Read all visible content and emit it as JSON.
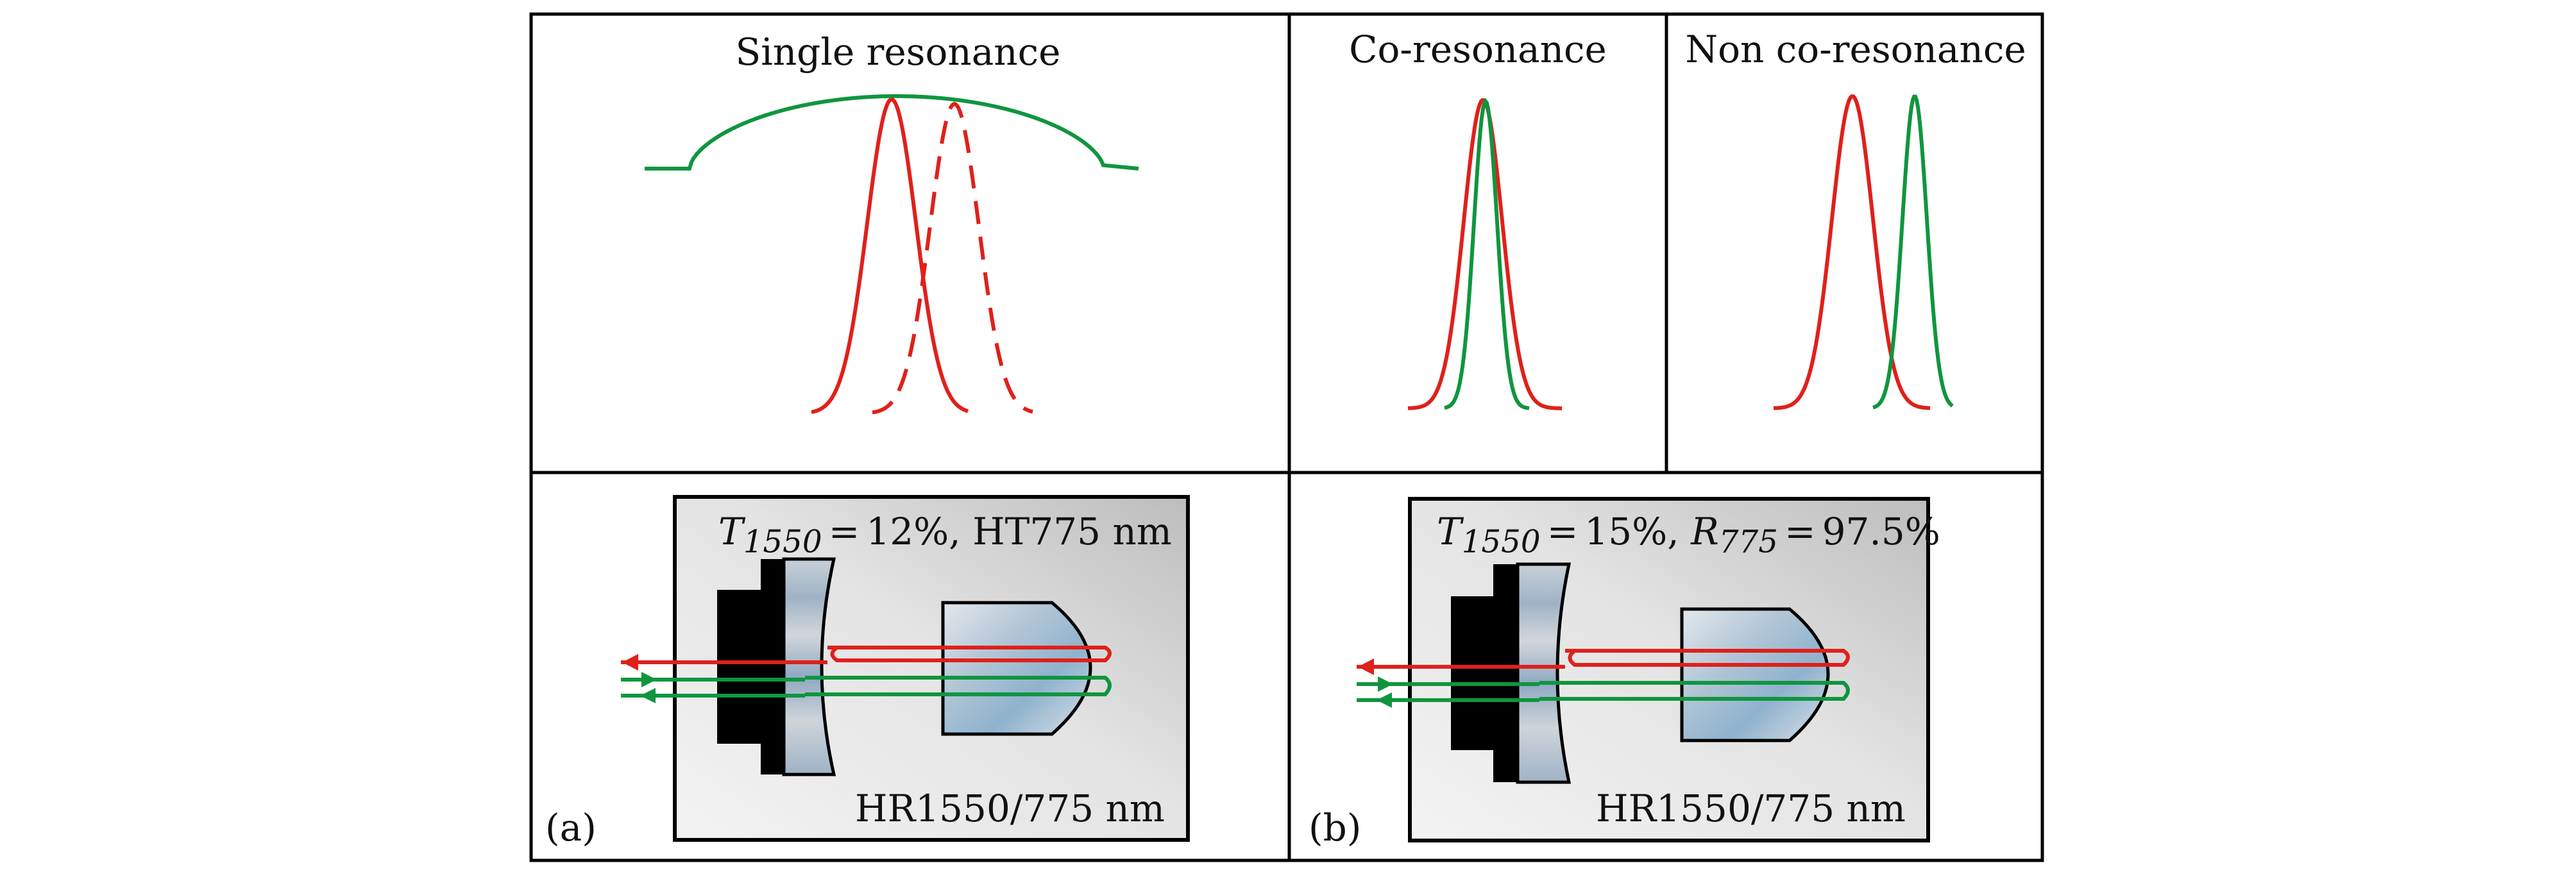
{
  "panels": {
    "single": {
      "title": "Single resonance"
    },
    "co": {
      "title": "Co-resonance"
    },
    "nonco": {
      "title": "Non co-resonance"
    }
  },
  "cavity_a": {
    "label": "(a)",
    "input_coupler": {
      "T_symbol": "T",
      "T_sub": "1550",
      "T_value": "12%,",
      "extra": "HT775 nm"
    },
    "hr_coating": "HR1550/775 nm"
  },
  "cavity_b": {
    "label": "(b)",
    "input_coupler": {
      "T_symbol": "T",
      "T_sub": "1550",
      "T_value": "15%,",
      "R_symbol": "R",
      "R_sub": "775",
      "R_value": "97.5%"
    },
    "hr_coating": "HR1550/775 nm"
  },
  "colors": {
    "fundamental_1550": "#e0201a",
    "harmonic_775": "#10953f",
    "mount": "#000000",
    "box_fill": "#e2e2e2",
    "frame": "#000000"
  }
}
